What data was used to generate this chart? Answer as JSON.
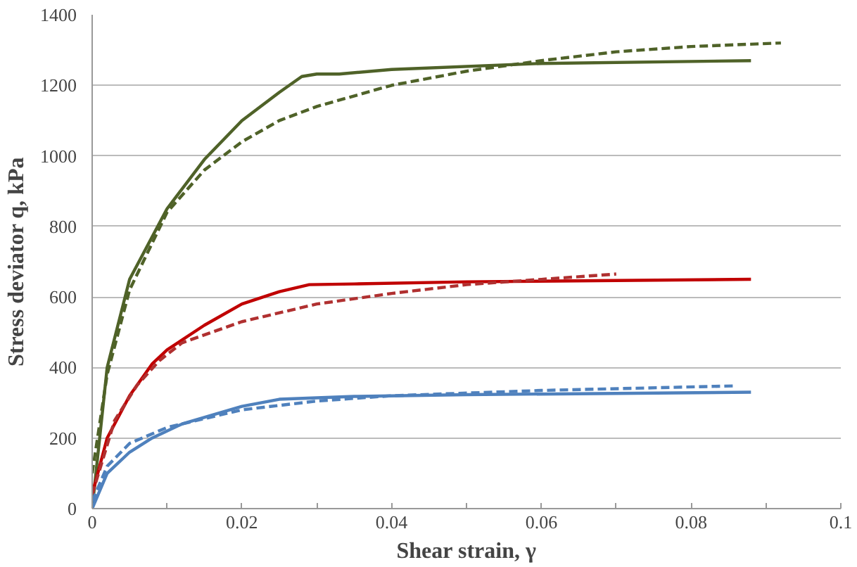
{
  "chart_data": {
    "type": "line",
    "xlabel": "Shear strain, γ",
    "ylabel": "Stress deviator q, kPa",
    "xlim": [
      0,
      0.1
    ],
    "ylim": [
      0,
      1400
    ],
    "xticks": [
      0,
      {
        "value": 0.01,
        "label": null
      },
      0.02,
      {
        "value": 0.03,
        "label": null
      },
      0.04,
      {
        "value": 0.05,
        "label": null
      },
      0.06,
      {
        "value": 0.07,
        "label": null
      },
      0.08,
      {
        "value": 0.09,
        "label": null
      },
      0.1
    ],
    "yticks": [
      0,
      200,
      400,
      600,
      800,
      1000,
      1200,
      1400
    ],
    "grid": "y",
    "series": [
      {
        "color": "#4f6228",
        "line_style": "solid",
        "x": [
          0,
          0.002,
          0.005,
          0.01,
          0.015,
          0.02,
          0.025,
          0.028,
          0.03,
          0.033,
          0.04,
          0.06,
          0.088
        ],
        "values": [
          0,
          400,
          650,
          850,
          990,
          1100,
          1180,
          1225,
          1232,
          1232,
          1245,
          1262,
          1270
        ]
      },
      {
        "color": "#4f6228",
        "line_style": "dashed",
        "x": [
          0,
          0.002,
          0.005,
          0.01,
          0.015,
          0.02,
          0.025,
          0.03,
          0.04,
          0.05,
          0.06,
          0.07,
          0.08,
          0.092
        ],
        "values": [
          100,
          380,
          620,
          840,
          960,
          1040,
          1100,
          1140,
          1200,
          1240,
          1270,
          1295,
          1310,
          1320
        ]
      },
      {
        "color": "#c00000",
        "line_style": "solid",
        "x": [
          0,
          0.002,
          0.005,
          0.008,
          0.01,
          0.015,
          0.02,
          0.025,
          0.029,
          0.035,
          0.05,
          0.088
        ],
        "values": [
          40,
          200,
          320,
          410,
          450,
          520,
          580,
          615,
          635,
          637,
          643,
          650
        ]
      },
      {
        "color": "#b03030",
        "line_style": "dashed",
        "x": [
          0,
          0.003,
          0.006,
          0.009,
          0.012,
          0.02,
          0.03,
          0.04,
          0.05,
          0.06,
          0.07
        ],
        "values": [
          40,
          250,
          350,
          420,
          470,
          530,
          580,
          610,
          635,
          650,
          665
        ]
      },
      {
        "color": "#4f81bd",
        "line_style": "solid",
        "x": [
          0,
          0.002,
          0.005,
          0.008,
          0.012,
          0.02,
          0.025,
          0.035,
          0.05,
          0.088
        ],
        "values": [
          0,
          100,
          160,
          200,
          240,
          290,
          310,
          318,
          323,
          330
        ]
      },
      {
        "color": "#4f81bd",
        "line_style": "dashed",
        "x": [
          0,
          0.002,
          0.005,
          0.01,
          0.02,
          0.03,
          0.04,
          0.06,
          0.086
        ],
        "values": [
          20,
          120,
          185,
          230,
          280,
          305,
          320,
          335,
          348
        ]
      }
    ]
  }
}
